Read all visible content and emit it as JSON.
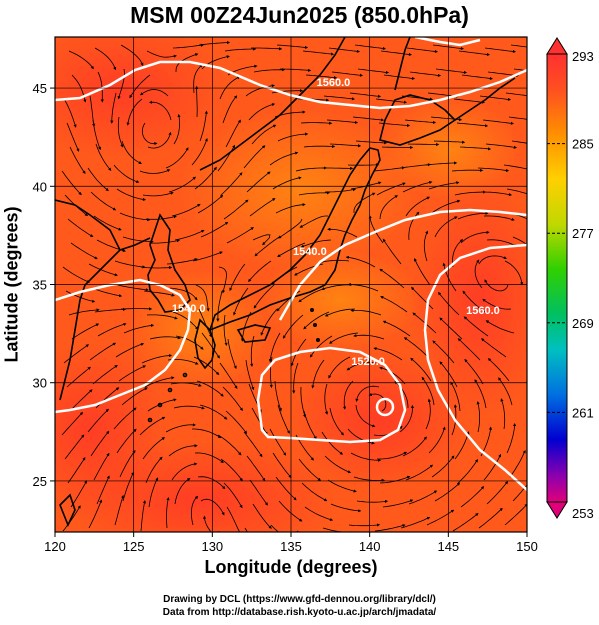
{
  "title": "MSM 00Z24Jun2025 (850.0hPa)",
  "xlabel": "Longitude (degrees)",
  "ylabel": "Latitude  (degrees)",
  "credits": [
    "Drawing by DCL (https://www.gfd-dennou.org/library/dcl/)",
    "Data from http://database.rish.kyoto-u.ac.jp/arch/jmadata/"
  ],
  "chart_data": {
    "type": "heatmap",
    "xlim": [
      120,
      150
    ],
    "ylim": [
      22.4,
      47.6
    ],
    "xticks": [
      120,
      125,
      130,
      135,
      140,
      145,
      150
    ],
    "xtick_labels": [
      "120",
      "125",
      "130",
      "135",
      "140",
      "145",
      "150"
    ],
    "yticks": [
      25,
      30,
      35,
      40,
      45
    ],
    "ytick_labels": [
      "25",
      "30",
      "35",
      "40",
      "45"
    ],
    "grid": true,
    "colorbar": {
      "min": 253,
      "max": 293,
      "ticks": [
        293,
        285,
        277,
        269,
        261,
        253
      ],
      "tick_labels": [
        "293",
        "285",
        "277",
        "269",
        "261",
        "253"
      ],
      "colors": [
        "#e0007a",
        "#8a00b0",
        "#0000d0",
        "#0070e0",
        "#00c0c0",
        "#00c060",
        "#30d000",
        "#c0d800",
        "#ffd000",
        "#ff9000",
        "#ff5020",
        "#ff3030"
      ]
    },
    "contours": [
      {
        "label": "1560.0",
        "lon": 137.7,
        "lat": 45.1
      },
      {
        "label": "1540.0",
        "lon": 136.2,
        "lat": 36.5
      },
      {
        "label": "1560.0",
        "lon": 147.2,
        "lat": 33.5
      },
      {
        "label": "1520.0",
        "lon": 139.9,
        "lat": 30.9
      },
      {
        "label": "1540.0",
        "lon": 128.5,
        "lat": 33.6
      }
    ]
  },
  "colors": {
    "field_warm": "#ff5a1c",
    "field_hot": "#f03a20",
    "contour": "#ffffff",
    "coast": "#000000",
    "stream": "#000000"
  }
}
